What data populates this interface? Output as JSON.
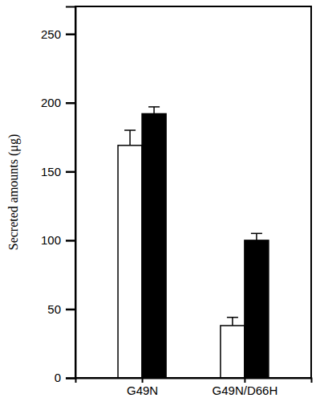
{
  "chart_data": {
    "type": "bar",
    "y_label": "Secreted amounts (μg)",
    "categories": [
      "G49N",
      "G49N/D66H"
    ],
    "series": [
      {
        "color": "#ffffff",
        "values": [
          169,
          38
        ],
        "errors": [
          11,
          6
        ]
      },
      {
        "color": "#000000",
        "values": [
          192,
          100
        ],
        "errors": [
          5,
          5
        ]
      }
    ],
    "ylim": [
      0,
      270
    ],
    "yticks": [
      0,
      50,
      100,
      150,
      200,
      250
    ],
    "grid": false
  }
}
